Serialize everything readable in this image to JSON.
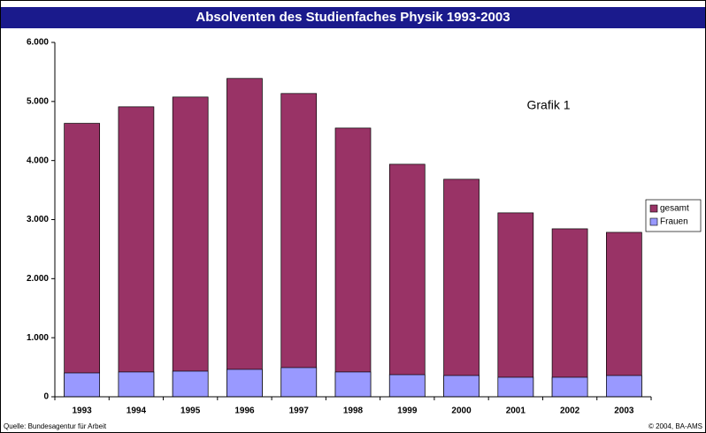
{
  "chart_data": {
    "type": "bar",
    "overlap": true,
    "title": "Absolventen des Studienfaches Physik 1993-2003",
    "annotation": "Grafik 1",
    "source": "Quelle: Bundesagentur für Arbeit",
    "copyright": "© 2004, BA-AMS",
    "categories": [
      "1993",
      "1994",
      "1995",
      "1996",
      "1997",
      "1998",
      "1999",
      "2000",
      "2001",
      "2002",
      "2003"
    ],
    "series": [
      {
        "name": "gesamt",
        "color": "#993366",
        "values": [
          4630,
          4910,
          5075,
          5390,
          5135,
          4550,
          3937,
          3683,
          3114,
          2844,
          2784
        ]
      },
      {
        "name": "Frauen",
        "color": "#9999ff",
        "values": [
          404,
          420,
          434,
          464,
          494,
          420,
          374,
          360,
          330,
          330,
          360
        ]
      }
    ],
    "ylim": [
      0,
      6000
    ],
    "yticks": [
      0,
      {
        "value": 1000,
        "label": "1.000"
      },
      {
        "value": 2000,
        "label": "2.000"
      },
      {
        "value": 3000,
        "label": "3.000"
      },
      {
        "value": 4000,
        "label": "4.000"
      },
      {
        "value": 5000,
        "label": "5.000"
      },
      {
        "value": 6000,
        "label": "6.000"
      }
    ],
    "legend": "right"
  }
}
